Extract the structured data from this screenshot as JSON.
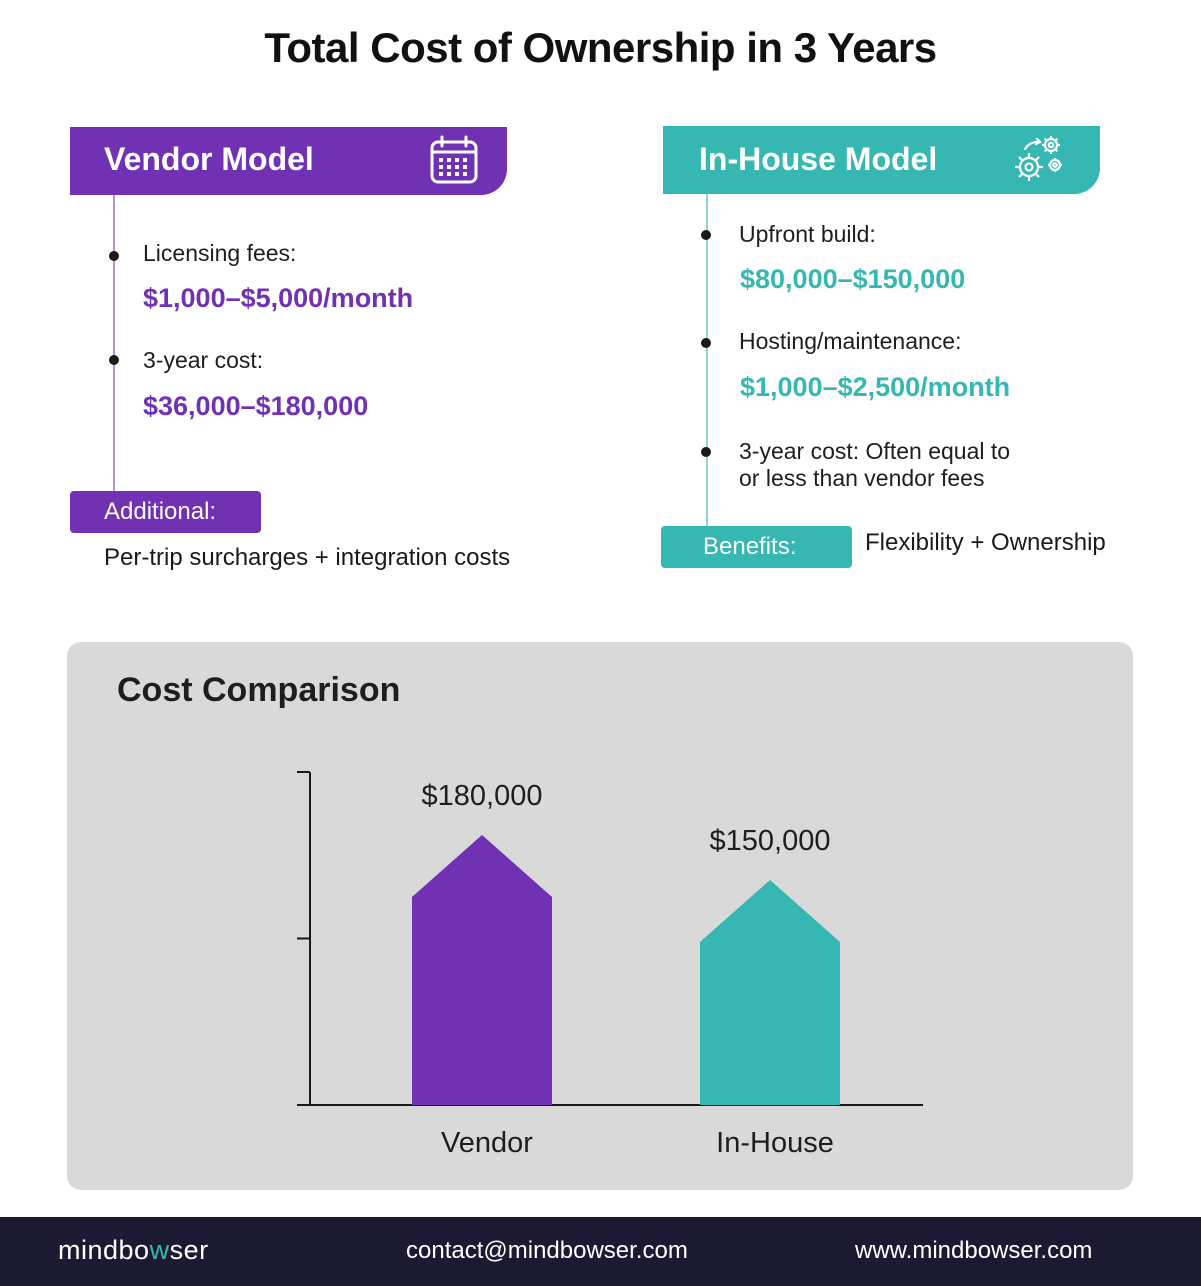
{
  "title": "Total Cost of Ownership in 3 Years",
  "vendor": {
    "header": "Vendor Model",
    "icon": "calendar-icon",
    "items": [
      {
        "label": "Licensing fees:",
        "value": "$1,000–$5,000/month"
      },
      {
        "label": "3-year cost:",
        "value": "$36,000–$180,000"
      }
    ],
    "tag": "Additional:",
    "note": "Per-trip surcharges + integration costs"
  },
  "inhouse": {
    "header": "In-House Model",
    "icon": "gears-icon",
    "items": [
      {
        "label": "Upfront build:",
        "value": "$80,000–$150,000"
      },
      {
        "label": "Hosting/maintenance:",
        "value": "$1,000–$2,500/month"
      },
      {
        "label_line1": "3-year cost: Often equal to",
        "label_line2": "or less than vendor fees"
      }
    ],
    "tag": "Benefits:",
    "note": "Flexibility + Ownership"
  },
  "colors": {
    "purple": "#7031b3",
    "teal": "#36b7b2",
    "panel": "#d9d9d9",
    "footer": "#1c1a33"
  },
  "chart_data": {
    "type": "bar",
    "title": "Cost Comparison",
    "categories": [
      "Vendor",
      "In-House"
    ],
    "values": [
      180000,
      150000
    ],
    "value_labels": [
      "$180,000",
      "$150,000"
    ],
    "colors": [
      "#7031b3",
      "#36b7b2"
    ],
    "bar_shape": "house-arrow",
    "xlabel": "",
    "ylabel": "",
    "ylim": [
      0,
      222000
    ],
    "grid": false
  },
  "footer": {
    "brand_pre": "mindbo",
    "brand_accent": "w",
    "brand_post": "ser",
    "email": "contact@mindbowser.com",
    "website": "www.mindbowser.com"
  }
}
